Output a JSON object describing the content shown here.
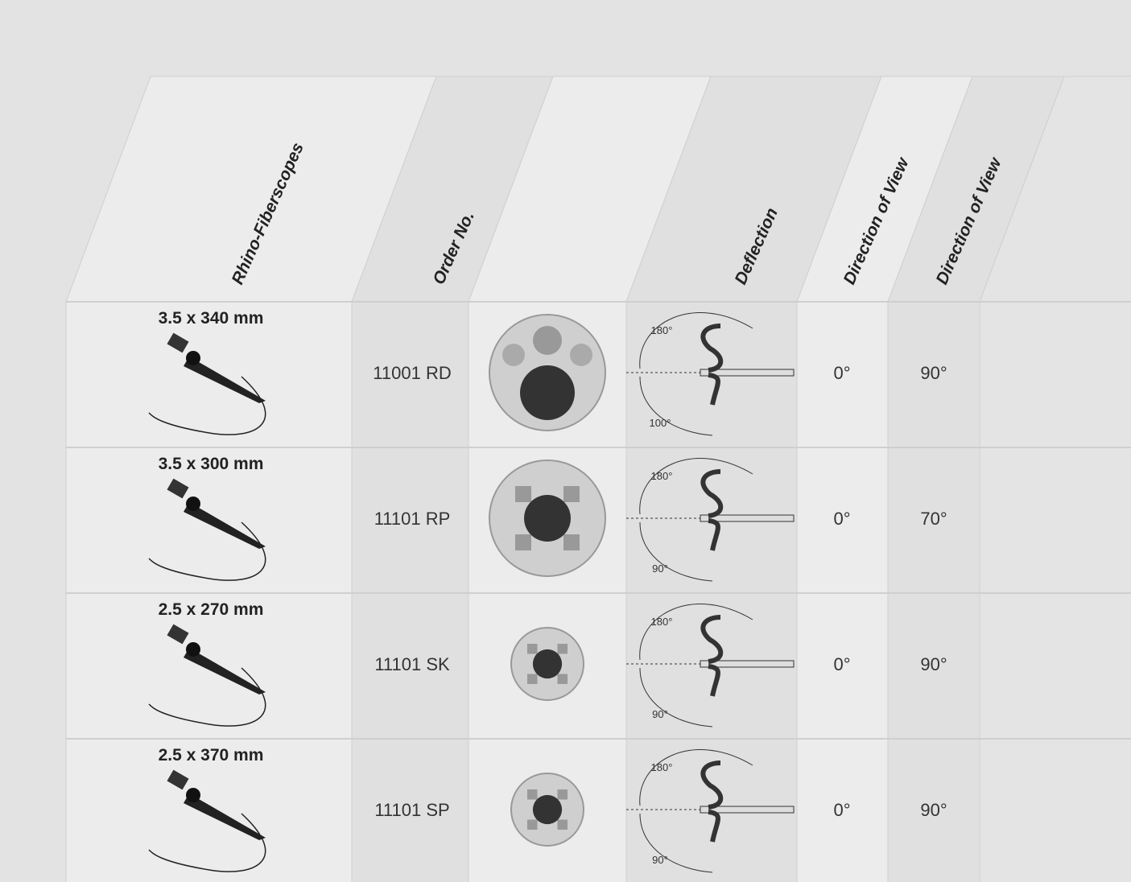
{
  "table": {
    "headers": [
      "Rhino-Fiberscopes",
      "Order No.",
      "Deflection",
      "Direction of View",
      "Direction of View"
    ],
    "rows": [
      {
        "size": "3.5 x 340 mm",
        "order": "11001 RD",
        "deflection_up": "180°",
        "deflection_down": "100°",
        "view_1": "0°",
        "view_2": "90°"
      },
      {
        "size": "3.5 x 300 mm",
        "order": "11101 RP",
        "deflection_up": "180°",
        "deflection_down": "90°",
        "view_1": "0°",
        "view_2": "70°"
      },
      {
        "size": "2.5 x 270 mm",
        "order": "11101 SK",
        "deflection_up": "180°",
        "deflection_down": "90°",
        "view_1": "0°",
        "view_2": "90°"
      },
      {
        "size": "2.5 x 370 mm",
        "order": "11101 SP",
        "deflection_up": "180°",
        "deflection_down": "90°",
        "view_1": "0°",
        "view_2": "90°"
      }
    ]
  }
}
